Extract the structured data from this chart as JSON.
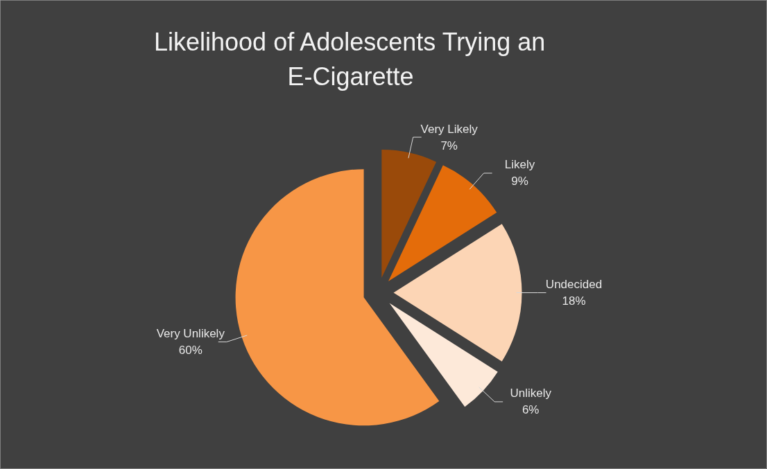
{
  "chart_data": {
    "type": "pie",
    "title": "Likelihood of Adolescents Trying an E-Cigarette",
    "categories": [
      "Very Likely",
      "Likely",
      "Undecided",
      "Unlikely",
      "Very Unlikely"
    ],
    "values": [
      7,
      9,
      18,
      6,
      60
    ],
    "value_labels": [
      "7%",
      "9%",
      "18%",
      "6%",
      "60%"
    ],
    "colors": [
      "#9a4a0a",
      "#e46c0a",
      "#fcd5b5",
      "#fde9d9",
      "#f79646"
    ]
  }
}
